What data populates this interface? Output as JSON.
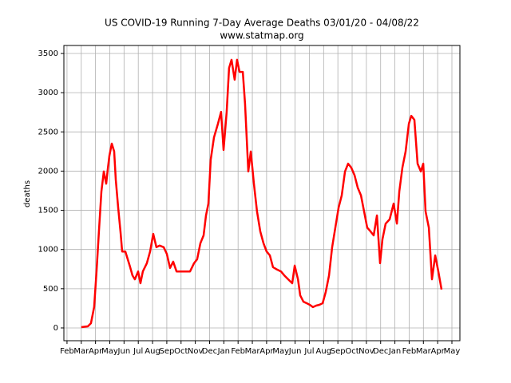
{
  "chart_data": {
    "type": "line",
    "title": "US COVID-19 Running 7-Day Average Deaths 03/01/20 - 04/08/22",
    "subtitle": "www.statmap.org",
    "y_label": "deaths",
    "color": "#ff0000",
    "grid": true,
    "x": [
      1.0,
      1.46,
      1.68,
      1.9,
      2.07,
      2.24,
      2.41,
      2.58,
      2.75,
      2.86,
      2.97,
      3.14,
      3.31,
      3.42,
      3.59,
      3.75,
      3.87,
      4.09,
      4.26,
      4.43,
      4.59,
      4.76,
      4.99,
      5.15,
      5.32,
      5.6,
      5.83,
      6.05,
      6.27,
      6.5,
      6.78,
      7.0,
      7.23,
      7.45,
      7.68,
      7.9,
      8.18,
      8.63,
      8.91,
      9.13,
      9.36,
      9.58,
      9.75,
      9.92,
      10.08,
      10.31,
      10.59,
      10.81,
      10.98,
      11.2,
      11.37,
      11.54,
      11.76,
      11.93,
      12.1,
      12.33,
      12.49,
      12.72,
      12.89,
      13.11,
      13.33,
      13.56,
      13.78,
      14.0,
      14.23,
      14.45,
      14.73,
      15.01,
      15.24,
      15.52,
      15.8,
      15.97,
      16.2,
      16.36,
      16.58,
      16.81,
      17.03,
      17.25,
      17.48,
      17.7,
      17.93,
      18.15,
      18.38,
      18.6,
      18.82,
      19.05,
      19.27,
      19.5,
      19.72,
      19.94,
      20.17,
      20.39,
      20.62,
      20.84,
      21.06,
      21.29,
      21.51,
      21.74,
      21.96,
      22.13,
      22.35,
      22.63,
      22.91,
      23.14,
      23.31,
      23.53,
      23.75,
      23.98,
      24.15,
      24.37,
      24.59,
      24.82,
      24.99,
      25.15,
      25.38,
      25.6,
      25.83,
      26.05,
      26.27
    ],
    "values": [
      10,
      20,
      60,
      265,
      720,
      1230,
      1740,
      1995,
      1840,
      2025,
      2195,
      2350,
      2250,
      1890,
      1535,
      1230,
      975,
      975,
      875,
      775,
      670,
      620,
      720,
      570,
      720,
      825,
      975,
      1200,
      1030,
      1050,
      1030,
      945,
      765,
      845,
      720,
      720,
      720,
      720,
      825,
      875,
      1080,
      1180,
      1435,
      1585,
      2145,
      2430,
      2605,
      2755,
      2270,
      2755,
      3315,
      3420,
      3165,
      3420,
      3265,
      3265,
      2860,
      1995,
      2250,
      1840,
      1485,
      1230,
      1080,
      975,
      925,
      775,
      745,
      720,
      670,
      620,
      570,
      795,
      620,
      415,
      335,
      315,
      295,
      265,
      285,
      295,
      315,
      460,
      670,
      1030,
      1280,
      1535,
      1690,
      1995,
      2095,
      2045,
      1945,
      1790,
      1690,
      1485,
      1280,
      1230,
      1180,
      1435,
      825,
      1130,
      1330,
      1385,
      1585,
      1330,
      1740,
      2045,
      2250,
      2605,
      2705,
      2655,
      2095,
      1995,
      2095,
      1485,
      1280,
      620,
      925,
      720,
      490
    ],
    "xlim": [
      -0.22,
      27.56
    ],
    "xticks": [
      {
        "value": 0,
        "label": "Feb"
      },
      {
        "value": 1,
        "label": "Mar"
      },
      {
        "value": 2,
        "label": "Apr"
      },
      {
        "value": 3,
        "label": "May"
      },
      {
        "value": 4,
        "label": "Jun"
      },
      {
        "value": 5,
        "label": "Jul"
      },
      {
        "value": 6,
        "label": "Aug"
      },
      {
        "value": 7,
        "label": "Sep"
      },
      {
        "value": 8,
        "label": "Oct"
      },
      {
        "value": 9,
        "label": "Nov"
      },
      {
        "value": 10,
        "label": "Dec"
      },
      {
        "value": 11,
        "label": "Jan"
      },
      {
        "value": 12,
        "label": "Feb"
      },
      {
        "value": 13,
        "label": "Mar"
      },
      {
        "value": 14,
        "label": "Apr"
      },
      {
        "value": 15,
        "label": "May"
      },
      {
        "value": 16,
        "label": "Jun"
      },
      {
        "value": 17,
        "label": "Jul"
      },
      {
        "value": 18,
        "label": "Aug"
      },
      {
        "value": 19,
        "label": "Sep"
      },
      {
        "value": 20,
        "label": "Oct"
      },
      {
        "value": 21,
        "label": "Nov"
      },
      {
        "value": 22,
        "label": "Dec"
      },
      {
        "value": 23,
        "label": "Jan"
      },
      {
        "value": 24,
        "label": "Feb"
      },
      {
        "value": 25,
        "label": "Mar"
      },
      {
        "value": 26,
        "label": "Apr"
      },
      {
        "value": 27,
        "label": "May"
      }
    ],
    "ylim": [
      -163,
      3602
    ],
    "yticks": [
      0,
      500,
      1000,
      1500,
      2000,
      2500,
      3000,
      3500
    ]
  }
}
